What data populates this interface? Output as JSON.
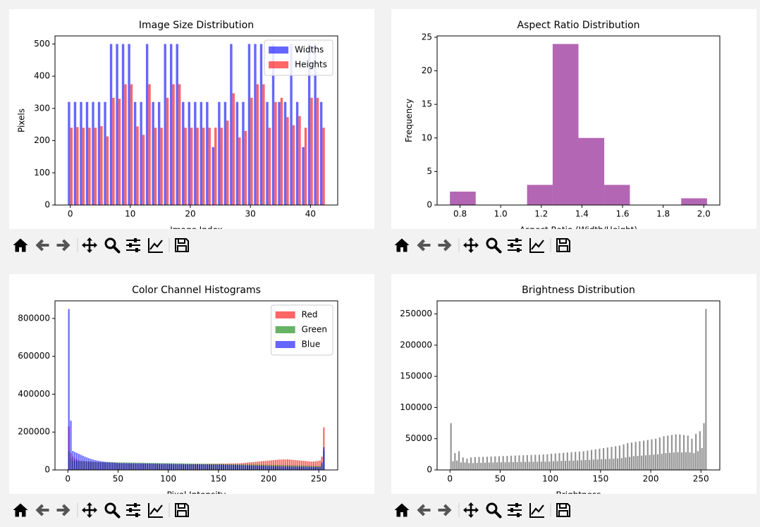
{
  "chart_data": [
    {
      "type": "bar",
      "title": "Image Size Distribution",
      "xlabel": "Image Index",
      "ylabel": "Pixels",
      "x": [
        0,
        1,
        2,
        3,
        4,
        5,
        6,
        7,
        8,
        9,
        10,
        11,
        12,
        13,
        14,
        15,
        16,
        17,
        18,
        19,
        20,
        21,
        22,
        23,
        24,
        25,
        26,
        27,
        28,
        29,
        30,
        31,
        32,
        33,
        34,
        35,
        36,
        37,
        38,
        39,
        40,
        41,
        42
      ],
      "series": [
        {
          "name": "Widths",
          "color": "#0000ff",
          "values": [
            320,
            320,
            320,
            320,
            320,
            320,
            320,
            500,
            500,
            500,
            500,
            320,
            320,
            500,
            320,
            320,
            500,
            500,
            500,
            320,
            320,
            320,
            320,
            320,
            180,
            320,
            320,
            500,
            320,
            320,
            500,
            500,
            500,
            320,
            500,
            320,
            320,
            500,
            320,
            180,
            500,
            500,
            320
          ]
        },
        {
          "name": "Heights",
          "color": "#ff0000",
          "values": [
            240,
            242,
            240,
            240,
            240,
            245,
            213,
            333,
            330,
            375,
            375,
            244,
            218,
            375,
            240,
            240,
            333,
            375,
            375,
            240,
            240,
            240,
            240,
            240,
            240,
            240,
            262,
            347,
            210,
            230,
            333,
            375,
            375,
            240,
            320,
            333,
            273,
            248,
            276,
            240,
            333,
            333,
            240
          ]
        }
      ],
      "alpha": 0.6,
      "xlim": [
        -2.54,
        44.54
      ],
      "xticks": [
        0,
        10,
        20,
        30,
        40
      ],
      "ylim": [
        0,
        525
      ],
      "yticks": [
        0,
        100,
        200,
        300,
        400,
        500
      ],
      "legend": "upper right"
    },
    {
      "type": "histogram",
      "title": "Aspect Ratio Distribution",
      "xlabel": "Aspect Ratio (Width/Height)",
      "ylabel": "Frequency",
      "bins": [
        0.75,
        0.877,
        1.003,
        1.13,
        1.256,
        1.383,
        1.51,
        1.636,
        1.763,
        1.889,
        2.016
      ],
      "values": [
        2,
        0,
        0,
        3,
        24,
        10,
        3,
        0,
        0,
        1
      ],
      "color": "#800080",
      "alpha": 0.6,
      "xlim": [
        0.687,
        2.079
      ],
      "xticks": [
        0.8,
        {
          "value": 1.0,
          "label": "1.0"
        },
        1.2,
        1.4,
        1.6,
        1.8,
        {
          "value": 2.0,
          "label": "2.0"
        }
      ],
      "ylim": [
        0,
        25.2
      ],
      "yticks": [
        0,
        5,
        10,
        15,
        20,
        25
      ]
    },
    {
      "type": "histogram",
      "title": "Color Channel Histograms",
      "xlabel": "Pixel Intensity",
      "bins": [
        0,
        2,
        4,
        6,
        8,
        10,
        12,
        14,
        16,
        18,
        20,
        22,
        24,
        26,
        28,
        30,
        32,
        34,
        36,
        38,
        40,
        42,
        44,
        46,
        48,
        50,
        52,
        54,
        56,
        58,
        60,
        62,
        64,
        66,
        68,
        70,
        72,
        74,
        76,
        78,
        80,
        82,
        84,
        86,
        88,
        90,
        92,
        94,
        96,
        98,
        100,
        102,
        104,
        106,
        108,
        110,
        112,
        114,
        116,
        118,
        120,
        122,
        124,
        126,
        128,
        130,
        132,
        134,
        136,
        138,
        140,
        142,
        144,
        146,
        148,
        150,
        152,
        154,
        156,
        158,
        160,
        162,
        164,
        166,
        168,
        170,
        172,
        174,
        176,
        178,
        180,
        182,
        184,
        186,
        188,
        190,
        192,
        194,
        196,
        198,
        200,
        202,
        204,
        206,
        208,
        210,
        212,
        214,
        216,
        218,
        220,
        222,
        224,
        226,
        228,
        230,
        232,
        234,
        236,
        238,
        240,
        242,
        244,
        246,
        248,
        250,
        252,
        254,
        256
      ],
      "series": [
        {
          "name": "Red",
          "color": "#ff0000",
          "values": [
            230000,
            90000,
            70000,
            60000,
            55000,
            50000,
            48000,
            47000,
            46000,
            45000,
            44500,
            44000,
            43000,
            42500,
            42000,
            41000,
            40500,
            40000,
            39500,
            39000,
            38500,
            38000,
            37500,
            37000,
            36500,
            36000,
            35800,
            35600,
            35400,
            35200,
            35000,
            34800,
            34600,
            34400,
            34200,
            34000,
            33800,
            33600,
            33400,
            33200,
            33000,
            32800,
            32600,
            32400,
            32200,
            32000,
            31800,
            31600,
            31400,
            31200,
            31000,
            30800,
            30600,
            30400,
            30200,
            30000,
            30000,
            30000,
            30000,
            30000,
            30000,
            30200,
            30400,
            30600,
            30800,
            31000,
            31200,
            31400,
            31600,
            31800,
            32000,
            32200,
            32400,
            32600,
            32800,
            33000,
            33200,
            33400,
            33600,
            33800,
            34000,
            34200,
            34400,
            34600,
            34800,
            35000,
            36000,
            37000,
            38000,
            39000,
            40000,
            41000,
            42000,
            43000,
            44000,
            45000,
            46000,
            47000,
            48000,
            49000,
            50000,
            51000,
            52000,
            53000,
            54000,
            55000,
            55000,
            56000,
            55000,
            56000,
            55000,
            54000,
            53000,
            52000,
            51000,
            50000,
            49000,
            48000,
            47000,
            46000,
            45000,
            44000,
            45000,
            46000,
            47000,
            50000,
            70000,
            225000
          ]
        },
        {
          "name": "Green",
          "color": "#008000",
          "values": [
            100000,
            60000,
            50000,
            48000,
            47500,
            47000,
            46500,
            46000,
            45500,
            45000,
            44500,
            44000,
            43500,
            43000,
            42500,
            42000,
            41800,
            41600,
            41400,
            41200,
            41000,
            40800,
            40600,
            40400,
            40200,
            40000,
            39800,
            39700,
            39500,
            39400,
            39200,
            39000,
            38900,
            38700,
            38500,
            38400,
            38200,
            38000,
            37800,
            37700,
            37500,
            37300,
            37200,
            37000,
            36800,
            36600,
            36500,
            36300,
            36100,
            36000,
            35800,
            35600,
            35400,
            35300,
            35100,
            35000,
            34800,
            34600,
            34500,
            34300,
            34100,
            34000,
            33800,
            33600,
            33400,
            33300,
            33100,
            33000,
            32800,
            32700,
            32600,
            32500,
            32400,
            32300,
            32100,
            32000,
            31800,
            31600,
            31400,
            31200,
            31000,
            30800,
            30600,
            30400,
            30200,
            30000,
            29800,
            29600,
            29400,
            29200,
            29000,
            28800,
            28600,
            28400,
            28200,
            28000,
            27800,
            27600,
            27400,
            27200,
            27000,
            26800,
            26600,
            26400,
            26200,
            26000,
            25800,
            25600,
            25400,
            25200,
            25000,
            24700,
            24400,
            24100,
            23800,
            23500,
            23200,
            22900,
            22600,
            22300,
            22000,
            21700,
            21400,
            21100,
            20800,
            20500,
            30000,
            100000
          ]
        },
        {
          "name": "Blue",
          "color": "#0000ff",
          "values": [
            850000,
            260000,
            100000,
            95000,
            90000,
            85000,
            80000,
            75000,
            70000,
            66000,
            62000,
            58000,
            55000,
            52000,
            50000,
            48000,
            46000,
            44000,
            43000,
            42000,
            41000,
            40000,
            39000,
            38000,
            37000,
            36000,
            36000,
            35800,
            35700,
            35500,
            35400,
            35200,
            35000,
            34900,
            34700,
            34500,
            34400,
            34200,
            34000,
            33900,
            33700,
            33500,
            33400,
            33200,
            33000,
            32900,
            32700,
            32500,
            32400,
            32200,
            32000,
            31900,
            31700,
            31500,
            31400,
            31200,
            31000,
            30900,
            30700,
            30500,
            30400,
            30200,
            30000,
            29900,
            29700,
            29500,
            29400,
            29200,
            29000,
            28900,
            28700,
            28500,
            28400,
            28200,
            28100,
            28000,
            27700,
            27400,
            27100,
            26800,
            26500,
            26200,
            25900,
            25600,
            25300,
            25000,
            24700,
            24400,
            24100,
            23800,
            23500,
            23200,
            22900,
            22600,
            22300,
            22000,
            21700,
            21400,
            21000,
            20500,
            20000,
            19800,
            19600,
            19400,
            19200,
            19000,
            18800,
            18600,
            18400,
            18200,
            18000,
            17800,
            17600,
            17400,
            17200,
            17000,
            16800,
            16600,
            16400,
            16200,
            16000,
            15800,
            15600,
            15400,
            15200,
            15000,
            40000,
            120000
          ]
        }
      ],
      "alpha": 0.6,
      "rwidth": 0.75,
      "xlim": [
        -12.8,
        268.8
      ],
      "xticks": [
        0,
        50,
        100,
        150,
        200,
        250
      ],
      "ylim": [
        0,
        893000
      ],
      "yticks": [
        0,
        200000,
        400000,
        600000,
        800000
      ],
      "legend": "upper right"
    },
    {
      "type": "histogram",
      "title": "Brightness Distribution",
      "xlabel": "Brightness",
      "bins": [
        0,
        2,
        4,
        6,
        8,
        10,
        12,
        14,
        16,
        18,
        20,
        22,
        24,
        26,
        28,
        30,
        32,
        34,
        36,
        38,
        40,
        42,
        44,
        46,
        48,
        50,
        52,
        54,
        56,
        58,
        60,
        62,
        64,
        66,
        68,
        70,
        72,
        74,
        76,
        78,
        80,
        82,
        84,
        86,
        88,
        90,
        92,
        94,
        96,
        98,
        100,
        102,
        104,
        106,
        108,
        110,
        112,
        114,
        116,
        118,
        120,
        122,
        124,
        126,
        128,
        130,
        132,
        134,
        136,
        138,
        140,
        142,
        144,
        146,
        148,
        150,
        152,
        154,
        156,
        158,
        160,
        162,
        164,
        166,
        168,
        170,
        172,
        174,
        176,
        178,
        180,
        182,
        184,
        186,
        188,
        190,
        192,
        194,
        196,
        198,
        200,
        202,
        204,
        206,
        208,
        210,
        212,
        214,
        216,
        218,
        220,
        222,
        224,
        226,
        228,
        230,
        232,
        234,
        236,
        238,
        240,
        242,
        244,
        246,
        248,
        250,
        252,
        254,
        256
      ],
      "values": [
        75000,
        14000,
        27000,
        15000,
        30000,
        12000,
        20000,
        12000,
        18000,
        11000,
        20000,
        11000,
        20500,
        11200,
        20800,
        11400,
        21000,
        11600,
        21200,
        11800,
        21500,
        12000,
        21800,
        12100,
        22000,
        12200,
        22300,
        12300,
        22500,
        12400,
        22800,
        12500,
        23000,
        12600,
        23300,
        12700,
        23500,
        12800,
        23800,
        12900,
        24000,
        13000,
        24300,
        13100,
        24500,
        13200,
        24800,
        13300,
        25000,
        13400,
        26000,
        14000,
        26500,
        14200,
        27000,
        14400,
        27500,
        14600,
        28000,
        14800,
        28500,
        15000,
        29000,
        15300,
        29500,
        15600,
        30000,
        15900,
        31000,
        16200,
        32000,
        16500,
        33000,
        16800,
        34000,
        17100,
        35000,
        17400,
        36000,
        17700,
        37000,
        18000,
        38000,
        18500,
        39000,
        19000,
        41000,
        20000,
        43000,
        21000,
        44000,
        22000,
        45000,
        22500,
        46000,
        23000,
        47000,
        23500,
        48000,
        24000,
        49000,
        24500,
        50000,
        25000,
        52000,
        26000,
        54000,
        27000,
        55000,
        27500,
        56000,
        28000,
        57000,
        28500,
        57000,
        28000,
        56000,
        28500,
        55000,
        28000,
        50000,
        27000,
        58000,
        30000,
        62000,
        35000,
        75000,
        258000
      ],
      "color": "#808080",
      "alpha": 0.85,
      "rwidth": 0.75,
      "xlim": [
        -12.8,
        268.8
      ],
      "xticks": [
        0,
        50,
        100,
        150,
        200,
        250
      ],
      "ylim": [
        0,
        271000
      ],
      "yticks": [
        0,
        50000,
        100000,
        150000,
        200000,
        250000
      ]
    }
  ]
}
